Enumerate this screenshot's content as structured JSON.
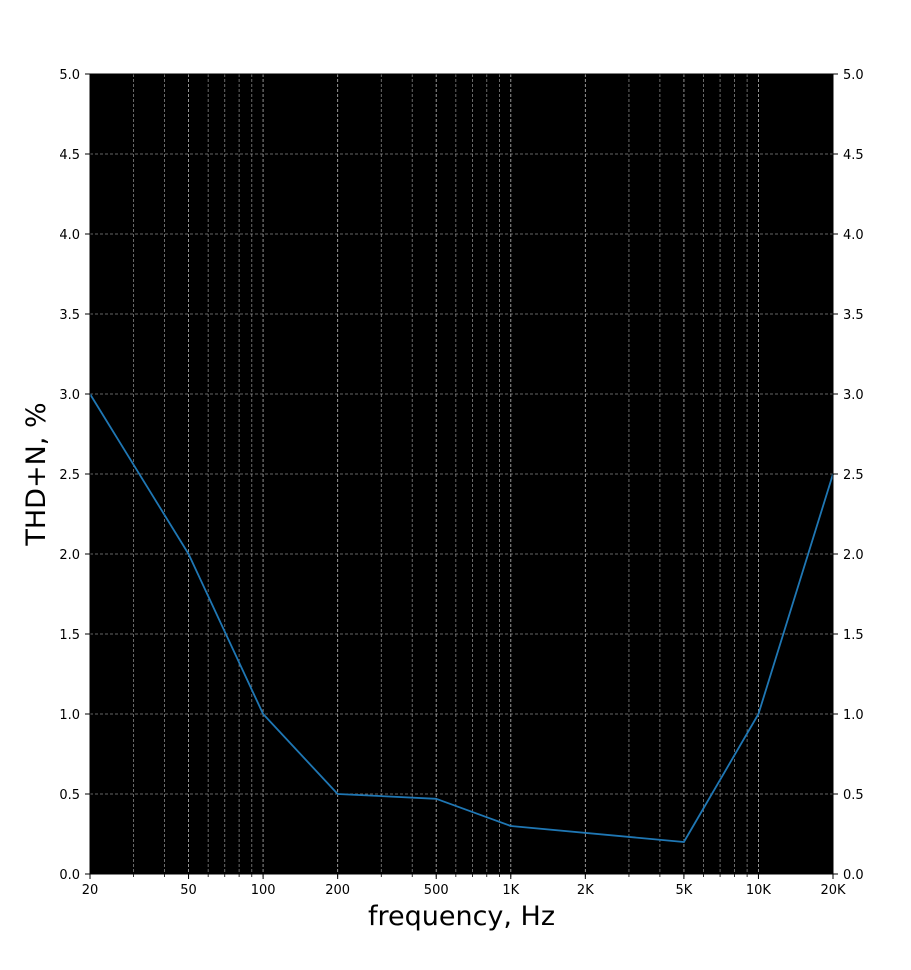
{
  "chart_data": {
    "type": "line",
    "title": "",
    "xlabel": "frequency, Hz",
    "ylabel": "THD+N, %",
    "x_scale": "log",
    "xlim": [
      20,
      20000
    ],
    "ylim": [
      0,
      5
    ],
    "x_ticks": [
      {
        "value": 20,
        "label": "20"
      },
      {
        "value": 50,
        "label": "50"
      },
      {
        "value": 100,
        "label": "100"
      },
      {
        "value": 200,
        "label": "200"
      },
      {
        "value": 500,
        "label": "500"
      },
      {
        "value": 1000,
        "label": "1K"
      },
      {
        "value": 2000,
        "label": "2K"
      },
      {
        "value": 5000,
        "label": "5K"
      },
      {
        "value": 10000,
        "label": "10K"
      },
      {
        "value": 20000,
        "label": "20K"
      }
    ],
    "y_ticks": [
      0.0,
      0.5,
      1.0,
      1.5,
      2.0,
      2.5,
      3.0,
      3.5,
      4.0,
      4.5,
      5.0
    ],
    "y_tick_labels": [
      "0.0",
      "0.5",
      "1.0",
      "1.5",
      "2.0",
      "2.5",
      "3.0",
      "3.5",
      "4.0",
      "4.5",
      "5.0"
    ],
    "y_ticks_both_sides": true,
    "grid": true,
    "grid_minor_x": true,
    "grid_style": "dashed",
    "legend": "none",
    "series": [
      {
        "x": [
          20,
          50,
          100,
          200,
          500,
          1000,
          5000,
          10000,
          20000
        ],
        "y": [
          3.0,
          2.0,
          1.0,
          0.5,
          0.47,
          0.3,
          0.2,
          1.0,
          2.5
        ]
      }
    ],
    "colors": {
      "plot_background": "#000000",
      "line": "#1f77b4",
      "grid": "#b0b0b0",
      "figure_background": "#ffffff"
    }
  }
}
